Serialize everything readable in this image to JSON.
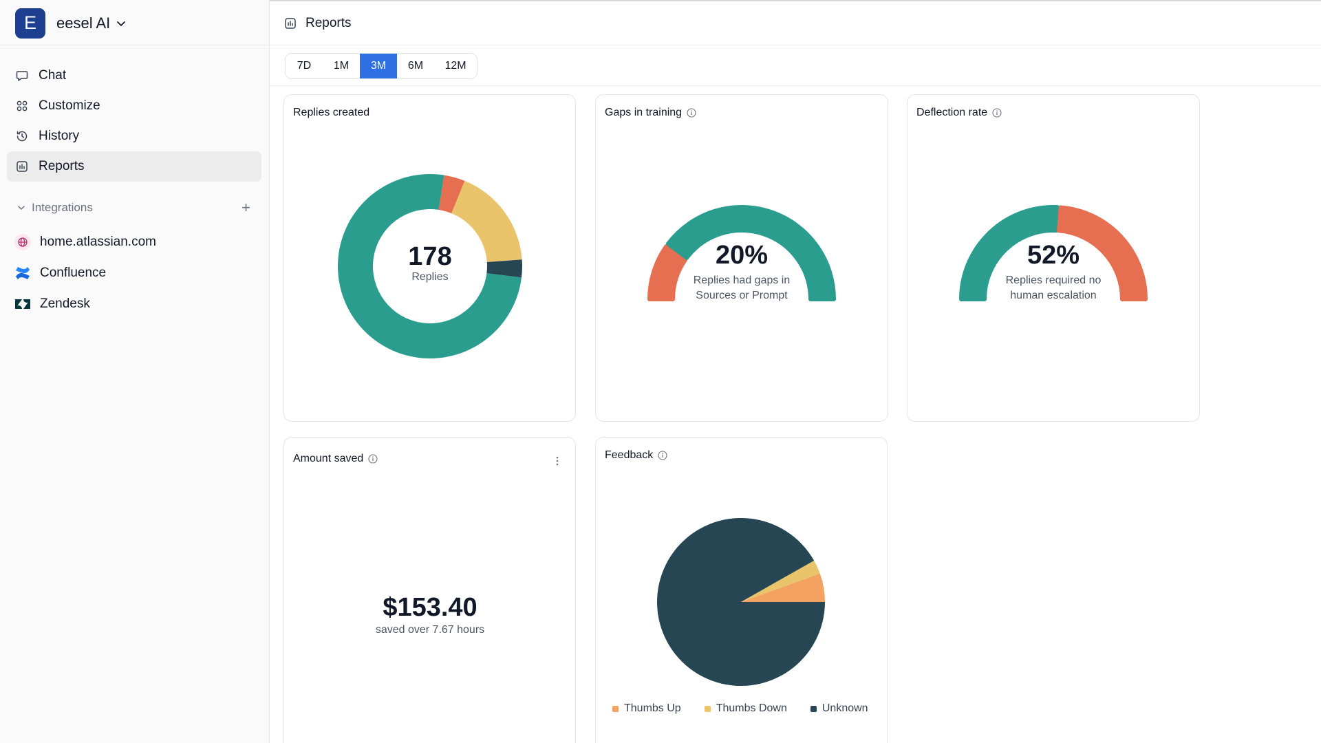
{
  "workspace": {
    "initial": "E",
    "name": "eesel AI"
  },
  "nav": [
    {
      "label": "Chat",
      "icon": "chat-bubble-icon"
    },
    {
      "label": "Customize",
      "icon": "grid-icon"
    },
    {
      "label": "History",
      "icon": "history-icon"
    },
    {
      "label": "Reports",
      "icon": "reports-icon"
    }
  ],
  "integrations": {
    "heading": "Integrations",
    "add_icon": "plus-icon",
    "items": [
      {
        "label": "home.atlassian.com",
        "icon": "globe-icon"
      },
      {
        "label": "Confluence",
        "icon": "confluence-icon"
      },
      {
        "label": "Zendesk",
        "icon": "zendesk-icon"
      }
    ]
  },
  "page": {
    "title": "Reports"
  },
  "ranges": [
    "7D",
    "1M",
    "3M",
    "6M",
    "12M"
  ],
  "selected_range": "3M",
  "cards": {
    "replies": {
      "title": "Replies created",
      "value": "178",
      "unit": "Replies"
    },
    "gaps": {
      "title": "Gaps in training",
      "value": "20%",
      "desc_line1": "Replies had gaps in",
      "desc_line2": "Sources or Prompt"
    },
    "deflection": {
      "title": "Deflection rate",
      "value": "52%",
      "desc_line1": "Replies required no",
      "desc_line2": "human escalation"
    },
    "amount": {
      "title": "Amount saved",
      "value": "$153.40",
      "desc": "saved over 7.67 hours"
    },
    "feedback": {
      "title": "Feedback"
    }
  },
  "colors": {
    "teal": "#2a9d8f",
    "coral": "#e76f51",
    "yellow": "#e9c46a",
    "dark": "#264653",
    "orange": "#f4a261",
    "accent_blue": "#2f6fe4"
  },
  "chart_data": [
    {
      "type": "pie",
      "title": "Replies created",
      "variant": "donut",
      "slices": [
        {
          "value": 0.755,
          "color": "#2a9d8f"
        },
        {
          "value": 0.037,
          "color": "#e76f51"
        },
        {
          "value": 0.177,
          "color": "#e9c46a"
        },
        {
          "value": 0.031,
          "color": "#264653"
        }
      ]
    },
    {
      "type": "gauge",
      "title": "Gaps in training",
      "value": 20,
      "max": 100,
      "segments": [
        {
          "label": "gaps",
          "value": 20,
          "color": "#e76f51"
        },
        {
          "label": "rest",
          "value": 80,
          "color": "#2a9d8f"
        }
      ]
    },
    {
      "type": "gauge",
      "title": "Deflection rate",
      "value": 52,
      "max": 100,
      "segments": [
        {
          "label": "deflected",
          "value": 52,
          "color": "#2a9d8f"
        },
        {
          "label": "escalated",
          "value": 48,
          "color": "#e76f51"
        }
      ]
    },
    {
      "type": "pie",
      "title": "Feedback",
      "slices": [
        {
          "name": "Thumbs Up",
          "value": 0.055,
          "color": "#f4a261"
        },
        {
          "name": "Thumbs Down",
          "value": 0.027,
          "color": "#e9c46a"
        },
        {
          "name": "Unknown",
          "value": 0.918,
          "color": "#264653"
        }
      ],
      "legend": [
        "Thumbs Up",
        "Thumbs Down",
        "Unknown"
      ],
      "legend_position": "bottom"
    }
  ]
}
